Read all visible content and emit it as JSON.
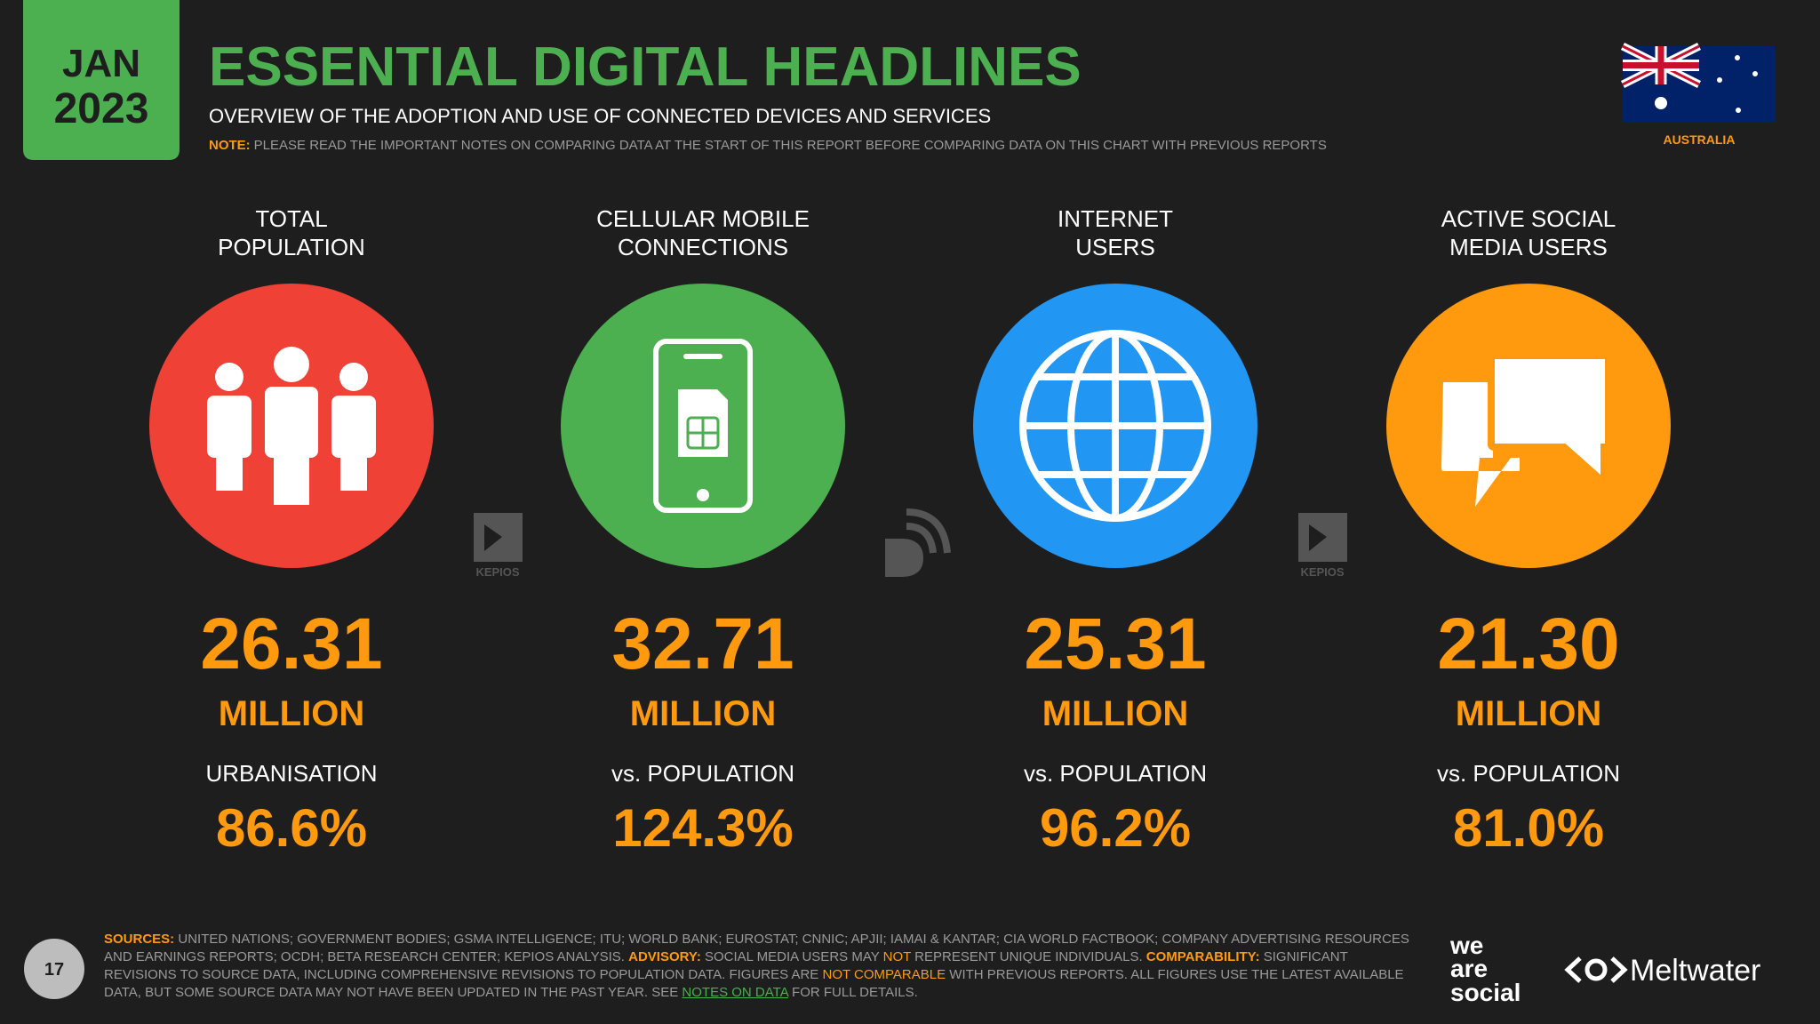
{
  "header": {
    "badge": [
      "JAN",
      "2023"
    ],
    "title": "ESSENTIAL DIGITAL HEADLINES",
    "subtitle": "OVERVIEW OF THE ADOPTION AND USE OF CONNECTED DEVICES AND SERVICES",
    "note_label": "NOTE:",
    "note": "PLEASE READ THE IMPORTANT NOTES ON COMPARING DATA AT THE START OF THIS REPORT BEFORE COMPARING DATA ON THIS CHART WITH PREVIOUS REPORTS",
    "country": "AUSTRALIA"
  },
  "cards": [
    {
      "label": [
        "TOTAL",
        "POPULATION"
      ],
      "value": "26.31",
      "unit": "MILLION",
      "sublabel": "URBANISATION",
      "percent": "86.6%"
    },
    {
      "label": [
        "CELLULAR MOBILE",
        "CONNECTIONS"
      ],
      "value": "32.71",
      "unit": "MILLION",
      "sublabel": "vs. POPULATION",
      "percent": "124.3%"
    },
    {
      "label": [
        "INTERNET",
        "USERS"
      ],
      "value": "25.31",
      "unit": "MILLION",
      "sublabel": "vs. POPULATION",
      "percent": "96.2%"
    },
    {
      "label": [
        "ACTIVE SOCIAL",
        "MEDIA USERS"
      ],
      "value": "21.30",
      "unit": "MILLION",
      "sublabel": "vs. POPULATION",
      "percent": "81.0%"
    }
  ],
  "source_logos": [
    "KEPIOS",
    "KEPIOS"
  ],
  "footer": {
    "page": "17",
    "segments": [
      "SOURCES:",
      " UNITED NATIONS; GOVERNMENT BODIES; GSMA INTELLIGENCE; ITU; WORLD BANK; EUROSTAT; CNNIC; APJII; IAMAI & KANTAR; CIA WORLD FACTBOOK; COMPANY ADVERTISING RESOURCES AND EARNINGS REPORTS; OCDH; BETA RESEARCH CENTER; KEPIOS ANALYSIS. ",
      "ADVISORY:",
      " SOCIAL MEDIA USERS MAY ",
      "NOT",
      " REPRESENT UNIQUE INDIVIDUALS. ",
      "COMPARABILITY:",
      " SIGNIFICANT REVISIONS TO SOURCE DATA, INCLUDING COMPREHENSIVE REVISIONS TO POPULATION DATA. FIGURES ARE ",
      "NOT COMPARABLE",
      " WITH PREVIOUS REPORTS. ALL FIGURES USE THE LATEST AVAILABLE DATA, BUT SOME SOURCE DATA MAY NOT HAVE BEEN UPDATED IN THE PAST YEAR. SEE ",
      "NOTES ON DATA",
      " FOR FULL DETAILS."
    ],
    "brand1": [
      "we",
      "are",
      "social"
    ],
    "brand2": "Meltwater"
  }
}
